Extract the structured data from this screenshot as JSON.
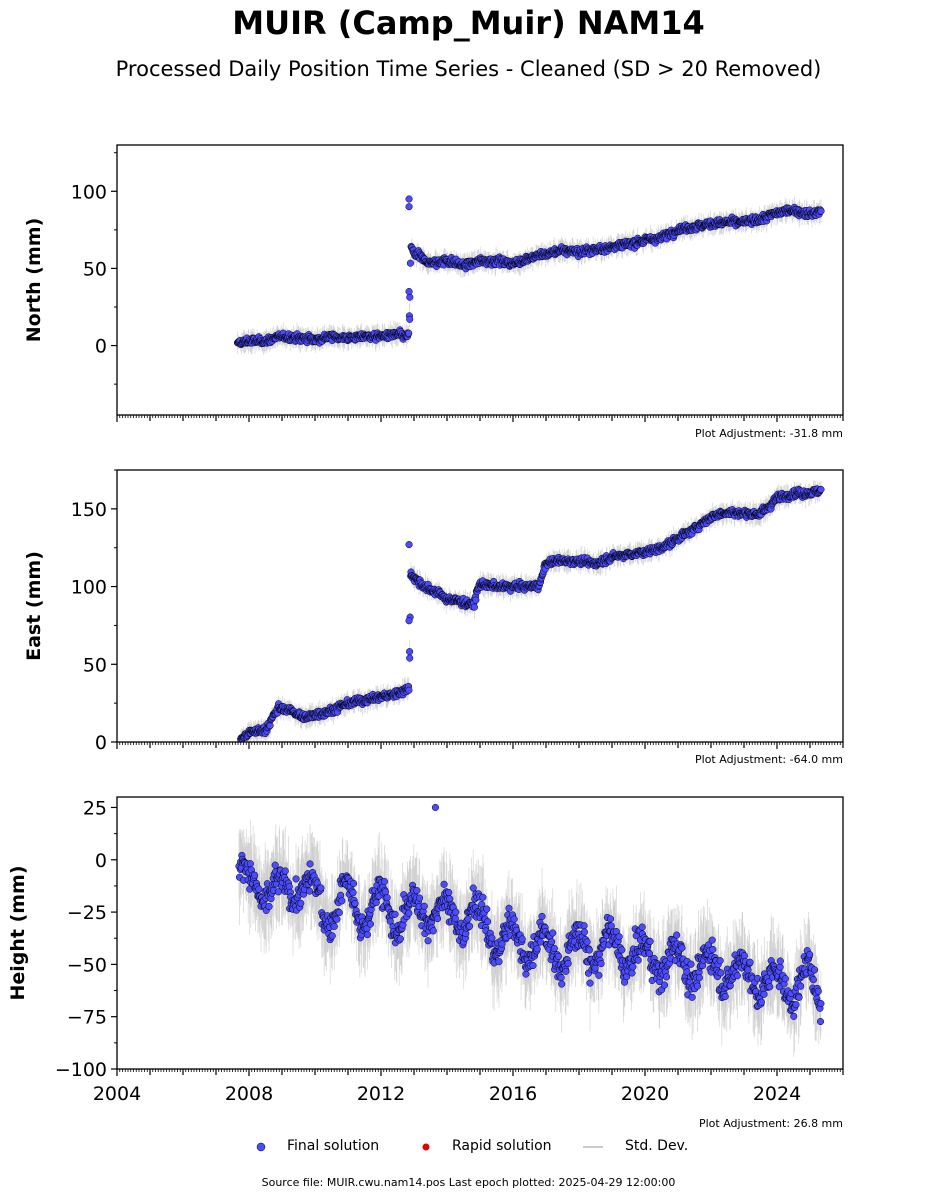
{
  "figure": {
    "title": "MUIR (Camp_Muir) NAM14",
    "subtitle": "Processed Daily Position Time Series - Cleaned (SD > 20 Removed)",
    "source_note": "Source file: MUIR.cwu.nam14.pos  Last epoch plotted: 2025-04-29 12:00:00",
    "colors": {
      "final": "#4b4bff",
      "final_edge": "#000000",
      "rapid": "#e00000",
      "std": "#bbbbbb"
    }
  },
  "legend": {
    "final": "Final solution",
    "rapid": "Rapid solution",
    "std": "Std. Dev."
  },
  "chart_data": [
    {
      "type": "scatter",
      "ylabel": "North (mm)",
      "adjustment": "Plot Adjustment: -31.8 mm",
      "xlim": [
        2004,
        2026
      ],
      "ylim": [
        -45,
        130
      ],
      "y_ticks": [
        0,
        50,
        100
      ],
      "y_tick_labels": [
        "0",
        "50",
        "100"
      ],
      "series": [
        {
          "x": [
            2007.65,
            2008.0,
            2008.5,
            2009.0,
            2009.5,
            2010.0,
            2010.5,
            2011.0,
            2011.5,
            2012.0,
            2012.5,
            2012.85,
            2012.9,
            2013.0,
            2013.5,
            2014.0,
            2014.5,
            2015.0,
            2015.5,
            2016.0,
            2016.5,
            2017.0,
            2017.5,
            2018.0,
            2018.5,
            2019.0,
            2019.5,
            2020.0,
            2020.5,
            2021.0,
            2021.5,
            2022.0,
            2022.5,
            2023.0,
            2023.5,
            2024.0,
            2024.5,
            2025.0,
            2025.33
          ],
          "y": [
            1,
            3,
            3,
            6,
            5,
            4,
            6,
            5,
            6,
            6,
            7,
            6,
            64,
            60,
            53,
            55,
            52,
            55,
            55,
            53,
            57,
            59,
            62,
            61,
            62,
            64,
            66,
            68,
            70,
            75,
            77,
            79,
            80,
            80,
            82,
            86,
            88,
            85,
            87
          ]
        }
      ],
      "outliers": {
        "x": [
          2012.85,
          2012.85,
          2012.85,
          2012.87
        ],
        "y": [
          95,
          90,
          35,
          17
        ]
      },
      "noise_mm": 3
    },
    {
      "type": "scatter",
      "ylabel": "East (mm)",
      "adjustment": "Plot Adjustment: -64.0 mm",
      "xlim": [
        2004,
        2026
      ],
      "ylim": [
        0,
        175
      ],
      "y_ticks": [
        0,
        50,
        100,
        150
      ],
      "y_tick_labels": [
        "0",
        "50",
        "100",
        "150"
      ],
      "series": [
        {
          "x": [
            2007.75,
            2008.0,
            2008.5,
            2008.9,
            2009.3,
            2009.7,
            2010.0,
            2010.5,
            2011.0,
            2011.5,
            2012.0,
            2012.5,
            2012.85,
            2012.9,
            2013.3,
            2013.7,
            2014.0,
            2014.5,
            2014.8,
            2015.0,
            2015.5,
            2016.0,
            2016.5,
            2016.8,
            2017.0,
            2017.5,
            2018.0,
            2018.5,
            2019.0,
            2019.5,
            2020.0,
            2020.5,
            2021.0,
            2021.5,
            2022.0,
            2022.5,
            2023.0,
            2023.5,
            2024.0,
            2024.5,
            2025.0,
            2025.33
          ],
          "y": [
            2,
            6,
            8,
            22,
            20,
            15,
            18,
            20,
            25,
            27,
            29,
            31,
            35,
            108,
            100,
            96,
            92,
            90,
            88,
            102,
            100,
            100,
            100,
            101,
            115,
            117,
            116,
            115,
            119,
            121,
            122,
            125,
            131,
            137,
            145,
            148,
            147,
            147,
            157,
            160,
            160,
            162
          ]
        }
      ],
      "outliers": {
        "x": [
          2012.85,
          2012.85,
          2012.87
        ],
        "y": [
          127,
          78,
          54
        ]
      },
      "noise_mm": 3
    },
    {
      "type": "scatter",
      "ylabel": "Height (mm)",
      "adjustment": "Plot Adjustment: 26.8 mm",
      "xlim": [
        2004,
        2026
      ],
      "ylim": [
        -100,
        30
      ],
      "y_ticks": [
        -100,
        -75,
        -50,
        -25,
        0,
        25
      ],
      "y_tick_labels": [
        "−100",
        "−75",
        "−50",
        "−25",
        "0",
        "25"
      ],
      "x_ticks": [
        2004,
        2008,
        2012,
        2016,
        2020,
        2024
      ],
      "x_tick_labels": [
        "2004",
        "2008",
        "2012",
        "2016",
        "2020",
        "2024"
      ],
      "series": [
        {
          "x": [
            2007.7,
            2008.0,
            2008.5,
            2009.0,
            2009.5,
            2010.0,
            2010.5,
            2011.0,
            2011.5,
            2012.0,
            2012.5,
            2013.0,
            2013.5,
            2014.0,
            2014.5,
            2015.0,
            2015.5,
            2016.0,
            2016.5,
            2017.0,
            2017.5,
            2018.0,
            2018.5,
            2019.0,
            2019.5,
            2020.0,
            2020.5,
            2021.0,
            2021.5,
            2022.0,
            2022.5,
            2023.0,
            2023.5,
            2024.0,
            2024.5,
            2025.0,
            2025.33
          ],
          "y": [
            -5,
            -15,
            -10,
            -20,
            -8,
            -20,
            -22,
            -20,
            -25,
            -22,
            -25,
            -28,
            -20,
            -28,
            -25,
            -30,
            -35,
            -40,
            -38,
            -45,
            -42,
            -45,
            -40,
            -45,
            -42,
            -50,
            -45,
            -52,
            -48,
            -55,
            -50,
            -58,
            -55,
            -62,
            -58,
            -60,
            -65
          ]
        }
      ],
      "outliers": {
        "x": [
          2013.65
        ],
        "y": [
          25
        ]
      },
      "noise_mm": 9
    }
  ]
}
